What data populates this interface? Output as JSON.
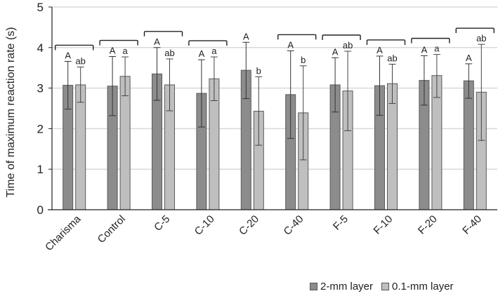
{
  "chart_data": {
    "type": "bar",
    "title": "",
    "xlabel": "",
    "ylabel": "Time of maximum reaction rate (s)",
    "ylim": [
      0,
      5
    ],
    "yticks": [
      0,
      1,
      2,
      3,
      4,
      5
    ],
    "grid": true,
    "legend_position": "bottom-right",
    "categories": [
      "Charisma",
      "Control",
      "C-5",
      "C-10",
      "C-20",
      "C-40",
      "F-5",
      "F-10",
      "F-20",
      "F-40"
    ],
    "series": [
      {
        "name": "2-mm layer",
        "color": "#8c8c8c",
        "values": [
          3.07,
          3.05,
          3.35,
          2.87,
          3.44,
          2.84,
          3.08,
          3.06,
          3.19,
          3.18
        ],
        "error_low": [
          2.48,
          2.32,
          2.7,
          2.04,
          2.74,
          1.76,
          2.41,
          2.33,
          2.58,
          2.75
        ],
        "error_high": [
          3.66,
          3.78,
          4.0,
          3.7,
          4.13,
          3.92,
          3.75,
          3.79,
          3.8,
          3.6
        ],
        "letters": [
          "A",
          "A",
          "A",
          "A",
          "A",
          "A",
          "A",
          "A",
          "A",
          "A"
        ]
      },
      {
        "name": "0.1-mm layer",
        "color": "#bfbfbf",
        "values": [
          3.08,
          3.29,
          3.08,
          3.23,
          2.43,
          2.39,
          2.93,
          3.11,
          3.31,
          2.9
        ],
        "error_low": [
          2.65,
          2.81,
          2.44,
          2.69,
          1.59,
          1.23,
          1.95,
          2.62,
          2.77,
          1.71
        ],
        "error_high": [
          3.52,
          3.77,
          3.72,
          3.77,
          3.28,
          3.55,
          3.91,
          3.59,
          3.83,
          4.08
        ],
        "letters": [
          "ab",
          "a",
          "ab",
          "a",
          "b",
          "b",
          "ab",
          "ab",
          "a",
          "ab"
        ]
      }
    ],
    "brackets": [
      true,
      true,
      true,
      true,
      false,
      true,
      true,
      true,
      true,
      true
    ]
  },
  "legend": {
    "items": [
      {
        "label": "2-mm layer",
        "color": "#8c8c8c"
      },
      {
        "label": "0.1-mm layer",
        "color": "#bfbfbf"
      }
    ]
  }
}
